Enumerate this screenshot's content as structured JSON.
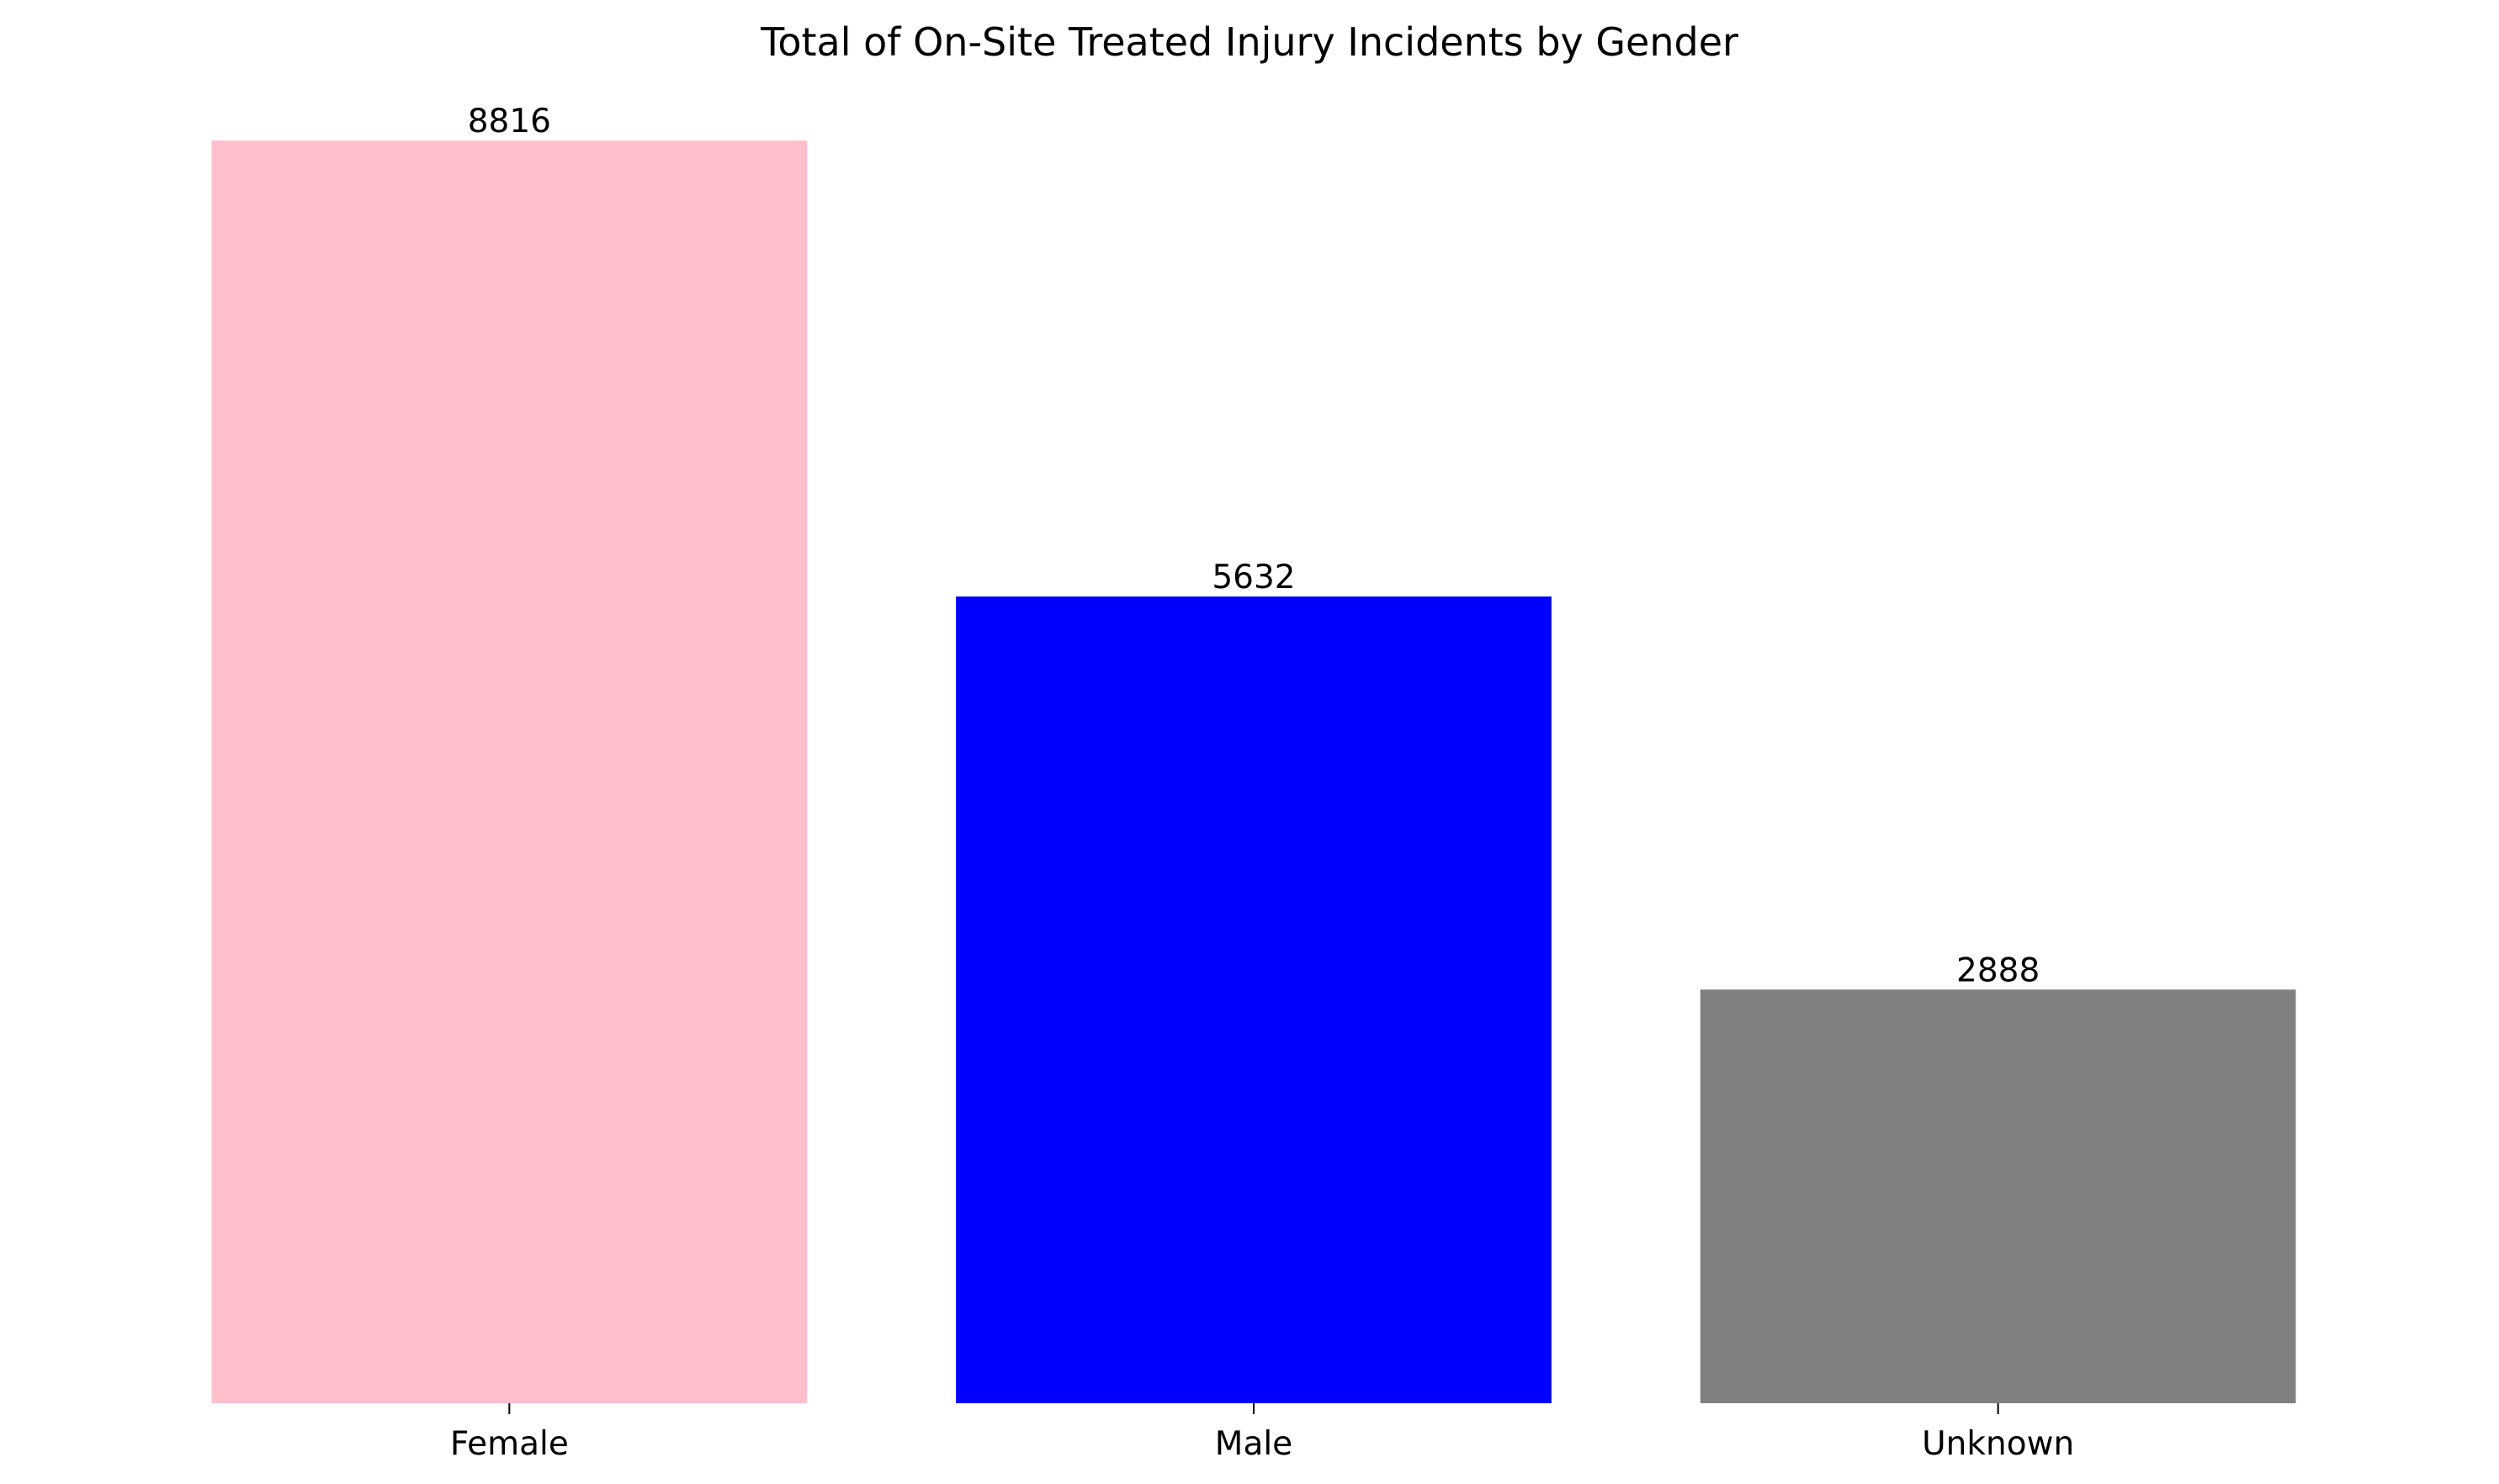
{
  "chart_data": {
    "type": "bar",
    "title": "Total of On-Site Treated Injury Incidents by Gender",
    "xlabel": "",
    "ylabel": "",
    "categories": [
      "Female",
      "Male",
      "Unknown"
    ],
    "values": [
      8816,
      5632,
      2888
    ],
    "data_labels": [
      "8816",
      "5632",
      "2888"
    ],
    "colors": [
      "#ffc0cb",
      "#0000ff",
      "#808080"
    ],
    "ylim": [
      0,
      8816
    ],
    "grid": false,
    "y_axis_visible": false,
    "frame_visible": false,
    "legend": "none"
  }
}
